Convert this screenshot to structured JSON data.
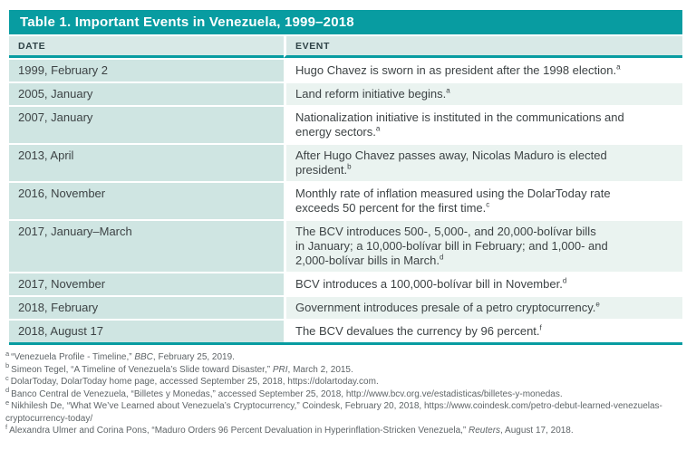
{
  "colors": {
    "teal": "#089ca1",
    "header_bg": "#d8e9e7",
    "date_bg": "#cfe5e2",
    "tint_bg": "#eaf3f0",
    "body_text": "#3d4345",
    "footnote_text": "#5f6568"
  },
  "table": {
    "title": "Table 1. Important Events in Venezuela, 1999–2018",
    "columns": [
      "DATE",
      "EVENT"
    ],
    "rows": [
      {
        "date": "1999, February 2",
        "event": "Hugo Chavez is sworn in as president after the 1998 election.",
        "note_ref": "a"
      },
      {
        "date": "2005, January",
        "event": "Land reform initiative begins.",
        "note_ref": "a"
      },
      {
        "date": "2007, January",
        "event": "Nationalization initiative is instituted in the communications and\nenergy sectors.",
        "note_ref": "a"
      },
      {
        "date": "2013, April",
        "event": "After Hugo Chavez passes away, Nicolas Maduro is elected\npresident.",
        "note_ref": "b"
      },
      {
        "date": "2016, November",
        "event": "Monthly rate of inflation measured using the DolarToday rate\nexceeds 50 percent for the first time.",
        "note_ref": "c"
      },
      {
        "date": "2017, January–March",
        "event": "The BCV introduces 500-, 5,000-, and 20,000-bolívar bills\nin January; a 10,000-bolívar bill in February; and 1,000- and\n2,000-bolívar bills in March.",
        "note_ref": "d"
      },
      {
        "date": "2017, November",
        "event": "BCV introduces a 100,000-bolívar bill in November.",
        "note_ref": "d"
      },
      {
        "date": "2018, February",
        "event": "Government introduces presale of a petro cryptocurrency.",
        "note_ref": "e"
      },
      {
        "date": "2018, August 17",
        "event": "The BCV devalues the currency by 96 percent.",
        "note_ref": "f"
      }
    ]
  },
  "footnotes": [
    {
      "marker": "a",
      "segments": [
        {
          "text": "“Venezuela Profile - Timeline,” "
        },
        {
          "text": "BBC",
          "italic": true
        },
        {
          "text": ", February 25, 2019."
        }
      ]
    },
    {
      "marker": "b",
      "segments": [
        {
          "text": "Simeon Tegel, “A Timeline of Venezuela’s Slide toward Disaster,” "
        },
        {
          "text": "PRI",
          "italic": true
        },
        {
          "text": ", March 2, 2015."
        }
      ]
    },
    {
      "marker": "c",
      "segments": [
        {
          "text": "DolarToday, DolarToday home page, accessed September 25, 2018, https://dolartoday.com."
        }
      ]
    },
    {
      "marker": "d",
      "segments": [
        {
          "text": "Banco Central de Venezuela, “Billetes y Monedas,” accessed September 25, 2018, http://www.bcv.org.ve/estadisticas/billetes-y-monedas."
        }
      ]
    },
    {
      "marker": "e",
      "segments": [
        {
          "text": "Nikhilesh De, “What We’ve Learned about Venezuela’s Cryptocurrency,” Coindesk, February 20, 2018, https://www.coindesk.com/petro-debut-learned-venezuelas-cryptocurrency-today/"
        }
      ]
    },
    {
      "marker": "f",
      "segments": [
        {
          "text": "Alexandra Ulmer and Corina Pons, “Maduro Orders 96 Percent Devaluation in Hyperinflation-Stricken Venezuela,” "
        },
        {
          "text": "Reuters",
          "italic": true
        },
        {
          "text": ", August 17, 2018."
        }
      ]
    }
  ]
}
